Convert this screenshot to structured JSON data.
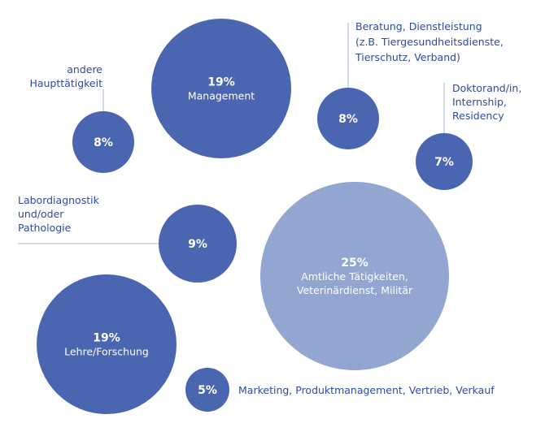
{
  "chart_data": {
    "type": "bubble",
    "unit": "%",
    "colors": {
      "primary": "#4a66b0",
      "highlight": "#93a6d1",
      "text": "#2e4a9e"
    },
    "series": [
      {
        "value": 8,
        "label_lines": [
          "andere",
          "Haupttätigkeit"
        ]
      },
      {
        "value": 19,
        "label_lines": [
          "Management"
        ]
      },
      {
        "value": 8,
        "label_lines": [
          "Beratung, Dienstleistung",
          "(z.B. Tiergesundheitsdienste,",
          "Tierschutz, Verband)"
        ]
      },
      {
        "value": 7,
        "label_lines": [
          "Doktorand/in,",
          "Internship,",
          "Residency"
        ]
      },
      {
        "value": 9,
        "label_lines": [
          "Labordiagnostik",
          "und/oder",
          "Pathologie"
        ]
      },
      {
        "value": 25,
        "label_lines": [
          "Amtliche Tätigkeiten,",
          "Veterinärdienst, Militär"
        ]
      },
      {
        "value": 19,
        "label_lines": [
          "Lehre/Forschung"
        ]
      },
      {
        "value": 5,
        "label_lines": [
          "Marketing, Produktmanagement, Vertrieb, Verkauf"
        ]
      }
    ]
  }
}
